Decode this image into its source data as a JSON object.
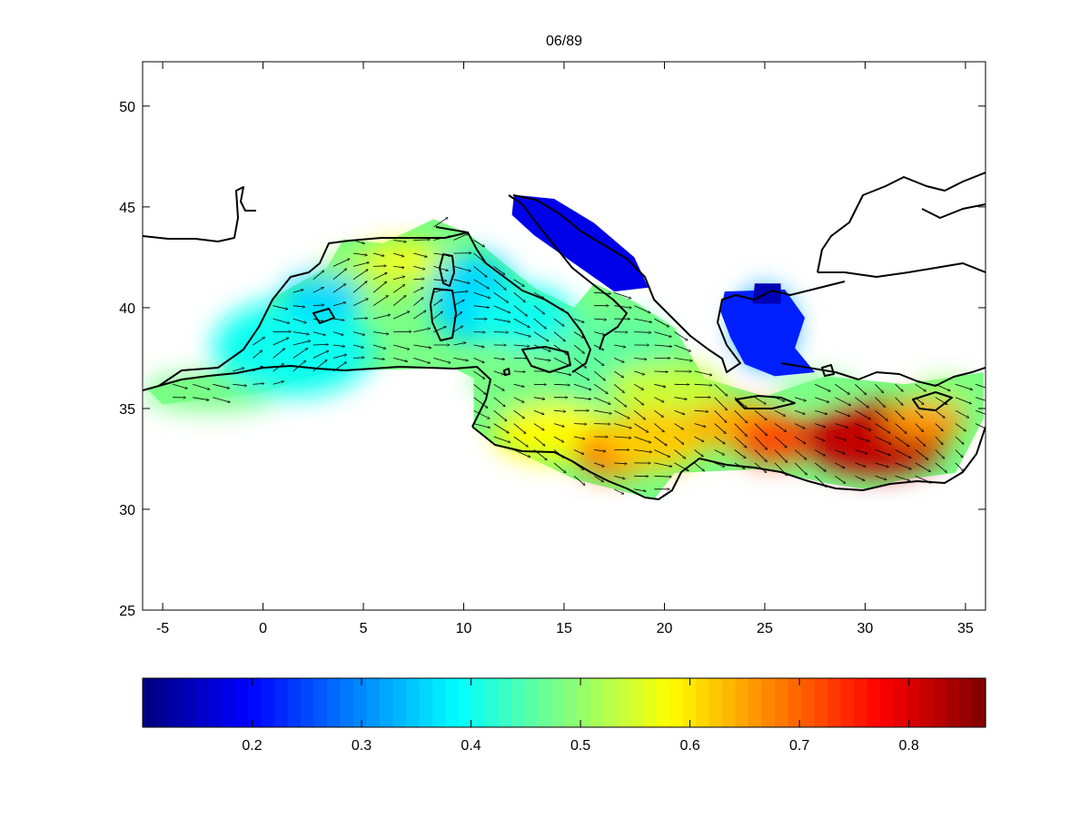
{
  "chart_data": [
    {
      "type": "heatmap",
      "title": "06/89",
      "xlabel": "",
      "ylabel": "",
      "xlim": [
        -6,
        36
      ],
      "ylim": [
        25,
        52.2
      ],
      "x_ticks": [
        "-5",
        "0",
        "5",
        "10",
        "15",
        "20",
        "25",
        "30",
        "35"
      ],
      "y_ticks": [
        "25",
        "30",
        "35",
        "40",
        "45",
        "50"
      ],
      "grid": false,
      "colormap": "jet",
      "overlay": "wind vectors (quiver)",
      "value_range": [
        0.1,
        0.87
      ],
      "high_region": {
        "lon": [
          27,
          34
        ],
        "lat": [
          32,
          35.5
        ],
        "value": 0.85
      },
      "low_region": {
        "lon": [
          12.5,
          19
        ],
        "lat": [
          40.5,
          45.5
        ],
        "value": 0.18
      }
    },
    {
      "type": "colorbar",
      "orientation": "horizontal",
      "range": [
        0.1,
        0.87
      ],
      "tick_values": [
        0.2,
        0.3,
        0.4,
        0.5,
        0.6,
        0.7,
        0.8
      ],
      "tick_labels": [
        "0.2",
        "0.3",
        "0.4",
        "0.5",
        "0.6",
        "0.7",
        "0.8"
      ]
    }
  ],
  "colors": {
    "coastline": "#000000",
    "axes": "#000000",
    "land": "#ffffff",
    "jet_low": "#00008f",
    "jet_high": "#800000"
  }
}
